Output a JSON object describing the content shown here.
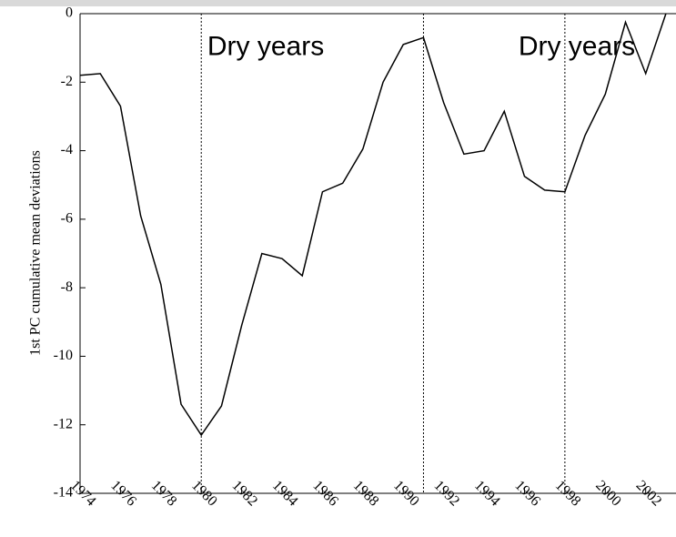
{
  "chart_data": {
    "type": "line",
    "y_label": "1st PC cumulative mean deviations",
    "x": [
      1974,
      1975,
      1976,
      1977,
      1978,
      1979,
      1980,
      1981,
      1982,
      1983,
      1984,
      1985,
      1986,
      1987,
      1988,
      1989,
      1990,
      1991,
      1992,
      1993,
      1994,
      1995,
      1996,
      1997,
      1998,
      1999,
      2000,
      2001,
      2002,
      2003
    ],
    "series": [
      {
        "color": "#000000",
        "values": [
          -1.8,
          -1.75,
          -2.7,
          -5.9,
          -7.9,
          -11.4,
          -12.3,
          -11.45,
          -9.1,
          -7.0,
          -7.15,
          -7.65,
          -5.2,
          -4.95,
          -3.95,
          -2.0,
          -0.9,
          -0.7,
          -2.6,
          -4.1,
          -4.0,
          -2.85,
          -4.75,
          -5.15,
          -5.2,
          -3.55,
          -2.35,
          -0.25,
          -1.75,
          0
        ]
      }
    ],
    "xlim": [
      1974,
      2003.5
    ],
    "ylim": [
      -14,
      0
    ],
    "xticks": [
      1974,
      1976,
      1978,
      1980,
      1982,
      1984,
      1986,
      1988,
      1990,
      1992,
      1994,
      1996,
      1998,
      2000,
      2002
    ],
    "yticks": [
      -14,
      -12,
      -10,
      -8,
      -6,
      -4,
      -2,
      0
    ],
    "vlines": [
      1980,
      1991,
      1998
    ],
    "annotations": [
      {
        "text": "Dry years",
        "x": 1980.3,
        "y": -1
      },
      {
        "text": "Dry years",
        "x": 1995.7,
        "y": -1
      }
    ],
    "annotation_color": "#ff0000"
  }
}
